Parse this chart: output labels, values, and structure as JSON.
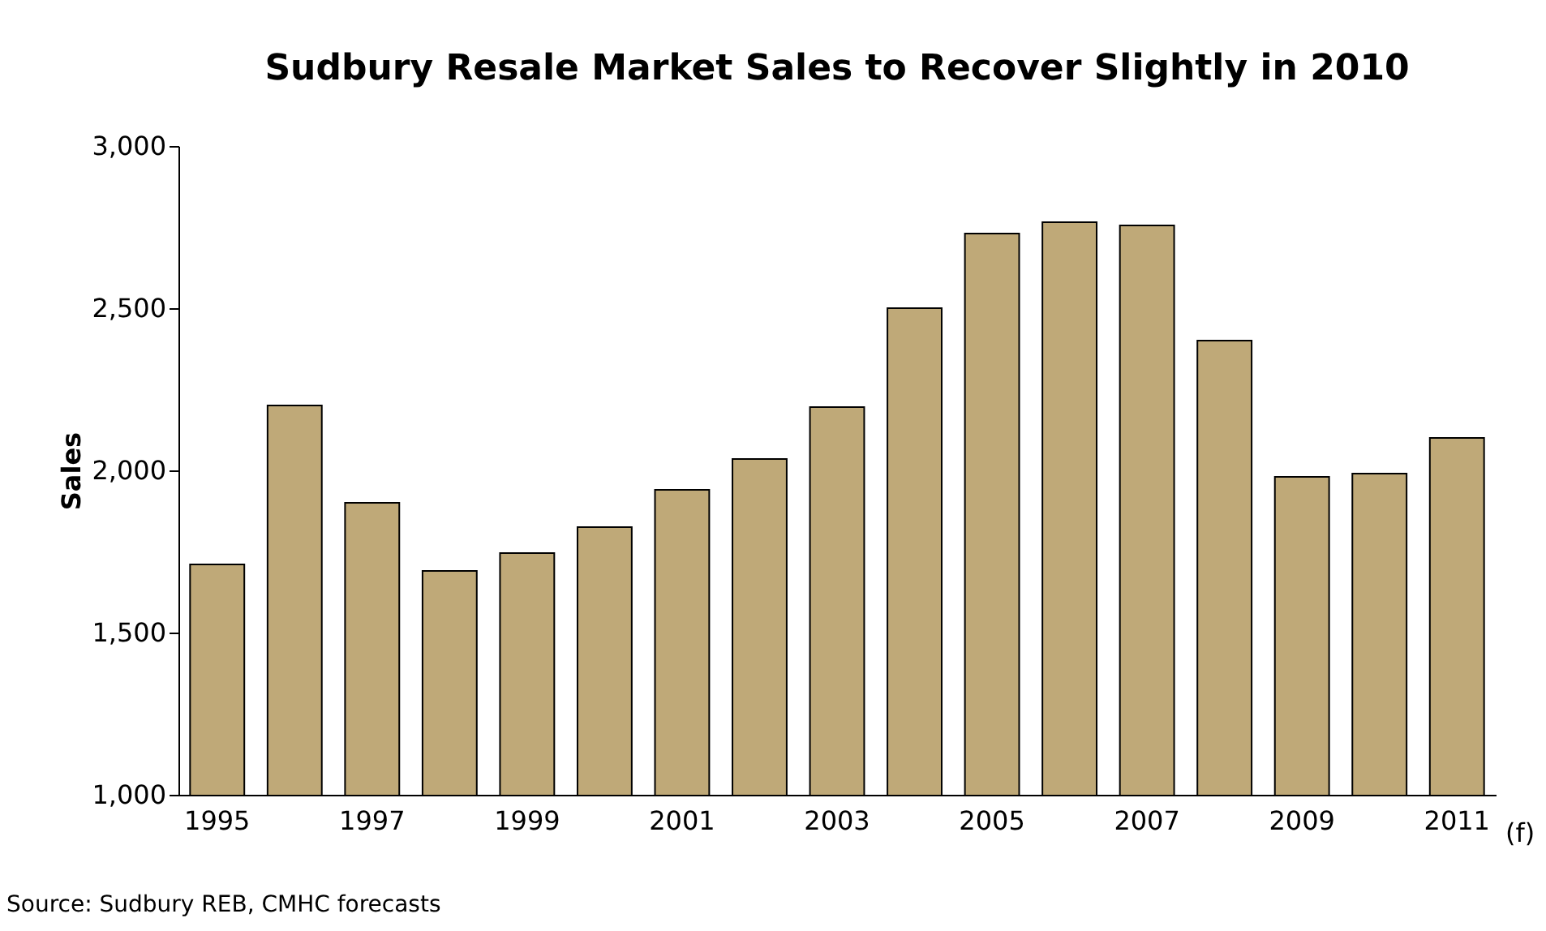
{
  "chart_data": {
    "type": "bar",
    "title": "Sudbury Resale Market Sales to Recover Slightly in 2010",
    "ylabel": "Sales",
    "categories": [
      "1995",
      null,
      "1997",
      null,
      "1999",
      null,
      "2001",
      null,
      "2003",
      null,
      "2005",
      null,
      "2007",
      null,
      "2009",
      null,
      "2011"
    ],
    "values": [
      1710,
      2200,
      1900,
      1690,
      1745,
      1825,
      1940,
      2035,
      2195,
      2500,
      2730,
      2765,
      2755,
      2400,
      1980,
      1990,
      2100
    ],
    "color": "#bfa978",
    "ylim": [
      1000,
      3000
    ],
    "yticks": [
      {
        "value": 1000,
        "label": "1,000"
      },
      {
        "value": 1500,
        "label": "1,500"
      },
      {
        "value": 2000,
        "label": "2,000"
      },
      {
        "value": 2500,
        "label": "2,500"
      },
      {
        "value": 3000,
        "label": "3,000"
      }
    ],
    "grid": false,
    "annotations": [
      "(f)",
      "Source: Sudbury REB, CMHC forecasts"
    ]
  }
}
